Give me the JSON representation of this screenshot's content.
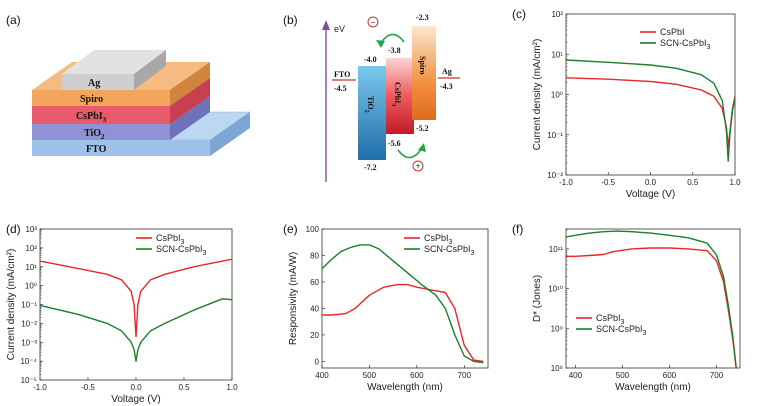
{
  "panels": {
    "a": {
      "label": "(a)",
      "layers": [
        "Ag",
        "Spiro",
        "CsPbI",
        "TiO",
        "FTO"
      ],
      "layer_subs": [
        "",
        "",
        "3",
        "2",
        ""
      ],
      "colors": {
        "fto": "#9ec2ea",
        "tio2": "#8f92d4",
        "cspbi3": "#e65a6a",
        "spiro": "#f3a55c",
        "ag": "#cfcfcf"
      }
    },
    "b": {
      "label": "(b)",
      "axis": "eV",
      "materials": {
        "fto": "FTO",
        "tio2": "TiO",
        "tio2_sub": "2",
        "cspbi3": "CsPbI",
        "cspbi3_sub": "3",
        "spiro": "Spiro",
        "ag": "Ag"
      },
      "levels": {
        "fto": "-4.5",
        "tio2_cb": "-4.0",
        "tio2_vb": "-7.2",
        "cspbi3_cb": "-3.8",
        "cspbi3_vb": "-5.6",
        "spiro_lumo": "-2.3",
        "spiro_homo": "-5.2",
        "ag": "-4.3"
      },
      "charges": {
        "electron": "−",
        "hole": "+"
      }
    }
  },
  "chart_data": [
    {
      "panel": "(c)",
      "type": "line",
      "xlabel": "Voltage (V)",
      "ylabel": "Current density (mA/cm²)",
      "xlim": [
        -1.0,
        1.0
      ],
      "xticks": [
        "-1.0",
        "-0.5",
        "0.0",
        "0.5",
        "1.0"
      ],
      "yscale": "log",
      "ylim_exp": [
        -2,
        2
      ],
      "series": [
        {
          "name": "CsPbI",
          "color": "#e8262b",
          "x": [
            -1.0,
            -0.5,
            0.0,
            0.3,
            0.6,
            0.75,
            0.85,
            0.9,
            0.92,
            0.94,
            0.97,
            1.0
          ],
          "y": [
            2.6,
            2.4,
            2.1,
            1.8,
            1.3,
            0.9,
            0.45,
            0.15,
            0.05,
            0.12,
            0.45,
            0.9
          ]
        },
        {
          "name": "SCN-CsPbI",
          "sub": "3",
          "color": "#1b7f2c",
          "x": [
            -1.0,
            -0.5,
            0.0,
            0.3,
            0.6,
            0.75,
            0.85,
            0.9,
            0.92,
            0.94,
            0.97,
            1.0
          ],
          "y": [
            7.2,
            6.3,
            5.4,
            4.5,
            3.1,
            1.9,
            0.7,
            0.12,
            0.022,
            0.1,
            0.4,
            0.8
          ]
        }
      ]
    },
    {
      "panel": "(d)",
      "type": "line",
      "xlabel": "Voltage (V)",
      "ylabel": "Current density (mA/cm²)",
      "xlim": [
        -1.0,
        1.0
      ],
      "xticks": [
        "-1.0",
        "-0.5",
        "0.0",
        "0.5",
        "1.0"
      ],
      "yscale": "log",
      "ylim_exp": [
        -5,
        3
      ],
      "series": [
        {
          "name": "CsPbI",
          "sub": "3",
          "color": "#e8262b",
          "x": [
            -1.0,
            -0.6,
            -0.3,
            -0.15,
            -0.05,
            -0.02,
            0.0,
            0.02,
            0.05,
            0.15,
            0.3,
            0.6,
            1.0
          ],
          "y": [
            20,
            8,
            4,
            2,
            0.5,
            0.1,
            0.002,
            0.1,
            0.5,
            2,
            4,
            10,
            25
          ]
        },
        {
          "name": "SCN-CsPbI",
          "sub": "3",
          "color": "#1b7f2c",
          "x": [
            -1.0,
            -0.6,
            -0.3,
            -0.15,
            -0.05,
            -0.02,
            0.0,
            0.02,
            0.05,
            0.15,
            0.3,
            0.6,
            0.9,
            1.0
          ],
          "y": [
            0.09,
            0.03,
            0.01,
            0.004,
            0.001,
            0.0004,
            0.0001,
            0.0004,
            0.001,
            0.004,
            0.01,
            0.05,
            0.2,
            0.18
          ]
        }
      ]
    },
    {
      "panel": "(e)",
      "type": "line",
      "xlabel": "Wavelength (nm)",
      "ylabel": "Responsivity (mA/W)",
      "xlim": [
        400,
        750
      ],
      "ylim": [
        -5,
        100
      ],
      "xticks": [
        "400",
        "500",
        "600",
        "700"
      ],
      "yticks": [
        "0",
        "20",
        "40",
        "60",
        "80",
        "100"
      ],
      "series": [
        {
          "name": "CsPbI",
          "sub": "3",
          "color": "#e8262b",
          "x": [
            400,
            420,
            450,
            470,
            500,
            530,
            560,
            580,
            600,
            630,
            660,
            680,
            700,
            720,
            740
          ],
          "y": [
            35,
            35,
            36,
            40,
            50,
            56,
            58,
            58,
            56,
            54,
            52,
            40,
            12,
            1,
            0
          ]
        },
        {
          "name": "SCN-CsPbI",
          "sub": "3",
          "color": "#1b7f2c",
          "x": [
            400,
            420,
            440,
            460,
            480,
            500,
            520,
            550,
            580,
            610,
            640,
            660,
            680,
            700,
            720,
            740
          ],
          "y": [
            70,
            77,
            83,
            86,
            88,
            88,
            85,
            76,
            67,
            58,
            50,
            40,
            20,
            4,
            0,
            -1
          ]
        }
      ]
    },
    {
      "panel": "(f)",
      "type": "line",
      "xlabel": "Wavelength (nm)",
      "ylabel": "D* (Jones)",
      "xlim": [
        380,
        750
      ],
      "xticks": [
        "400",
        "500",
        "600",
        "700"
      ],
      "yscale": "log",
      "ylim_exp": [
        8,
        11.5
      ],
      "series": [
        {
          "name": "CsPbI",
          "sub": "3",
          "color": "#e8262b",
          "x": [
            380,
            400,
            430,
            460,
            480,
            520,
            560,
            600,
            640,
            680,
            700,
            715,
            725,
            735,
            742
          ],
          "y": [
            65000000000.0,
            65000000000.0,
            68000000000.0,
            72000000000.0,
            85000000000.0,
            100000000000.0,
            105000000000.0,
            105000000000.0,
            100000000000.0,
            90000000000.0,
            50000000000.0,
            15000000000.0,
            3000000000.0,
            500000000.0,
            100000000.0
          ]
        },
        {
          "name": "SCN-CsPbI",
          "sub": "3",
          "color": "#1b7f2c",
          "x": [
            380,
            400,
            430,
            460,
            490,
            520,
            560,
            600,
            640,
            680,
            700,
            715,
            725,
            735,
            742
          ],
          "y": [
            200000000000.0,
            220000000000.0,
            250000000000.0,
            270000000000.0,
            280000000000.0,
            270000000000.0,
            250000000000.0,
            220000000000.0,
            190000000000.0,
            140000000000.0,
            70000000000.0,
            20000000000.0,
            4000000000.0,
            600000000.0,
            100000000.0
          ]
        }
      ]
    }
  ]
}
